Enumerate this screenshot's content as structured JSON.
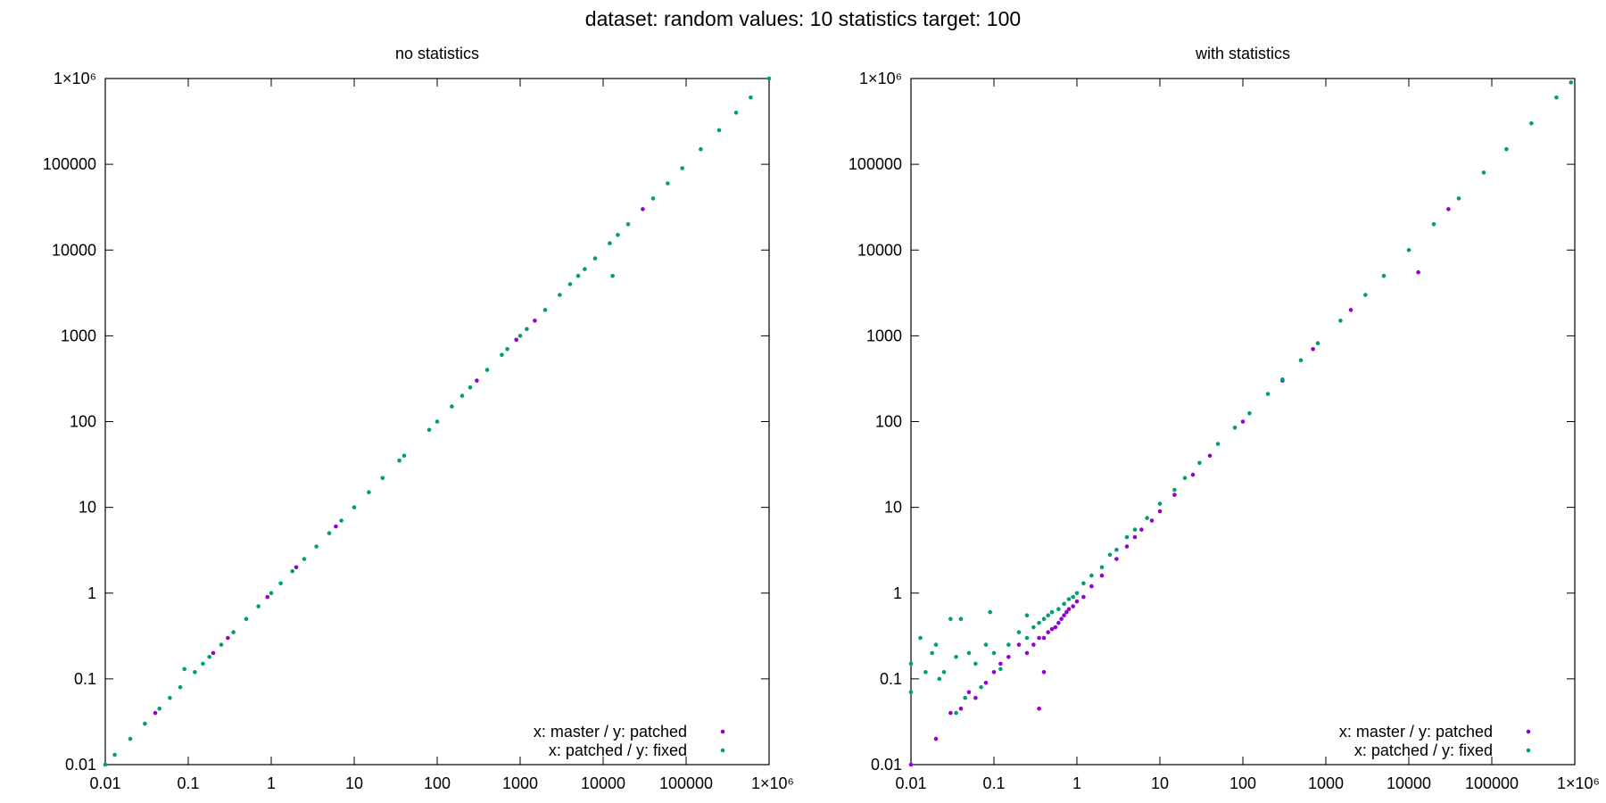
{
  "figure": {
    "title": "dataset: random  values: 10  statistics target: 100"
  },
  "colors": {
    "master_patched": "#9400d3",
    "patched_fixed": "#009e73",
    "axis": "#000000"
  },
  "chart_data": [
    {
      "type": "scatter",
      "title": "no statistics",
      "xlabel": "",
      "ylabel": "",
      "x_scale": "log",
      "y_scale": "log",
      "xlim": [
        0.01,
        1000000
      ],
      "ylim": [
        0.01,
        1000000
      ],
      "x_ticks": [
        0.01,
        0.1,
        1,
        10,
        100,
        1000,
        10000,
        100000,
        1000000
      ],
      "y_ticks": [
        0.01,
        0.1,
        1,
        10,
        100,
        1000,
        10000,
        100000,
        1000000
      ],
      "tick_labels": [
        "0.01",
        "0.1",
        "1",
        "10",
        "100",
        "1000",
        "10000",
        "100000",
        "1×10⁶"
      ],
      "grid": false,
      "legend_position": "bottom-right",
      "series": [
        {
          "name": "x: master / y: patched",
          "color": "#9400d3",
          "points": [
            [
              0.04,
              0.04
            ],
            [
              0.2,
              0.2
            ],
            [
              0.9,
              0.9
            ],
            [
              6,
              6
            ],
            [
              300,
              300
            ],
            [
              900,
              900
            ],
            [
              30000,
              30000
            ],
            [
              0.3,
              0.3
            ],
            [
              2,
              2
            ],
            [
              1500,
              1500
            ]
          ]
        },
        {
          "name": "x: patched / y: fixed",
          "color": "#009e73",
          "points": [
            [
              0.01,
              0.01
            ],
            [
              0.013,
              0.013
            ],
            [
              0.02,
              0.02
            ],
            [
              0.03,
              0.03
            ],
            [
              0.045,
              0.045
            ],
            [
              0.06,
              0.06
            ],
            [
              0.08,
              0.08
            ],
            [
              0.09,
              0.13
            ],
            [
              0.12,
              0.12
            ],
            [
              0.15,
              0.15
            ],
            [
              0.18,
              0.18
            ],
            [
              0.25,
              0.25
            ],
            [
              0.35,
              0.35
            ],
            [
              0.5,
              0.5
            ],
            [
              0.7,
              0.7
            ],
            [
              1,
              1
            ],
            [
              1.3,
              1.3
            ],
            [
              1.8,
              1.8
            ],
            [
              2.5,
              2.5
            ],
            [
              3.5,
              3.5
            ],
            [
              5,
              5
            ],
            [
              7,
              7
            ],
            [
              10,
              10
            ],
            [
              15,
              15
            ],
            [
              22,
              22
            ],
            [
              35,
              35
            ],
            [
              40,
              40
            ],
            [
              80,
              80
            ],
            [
              100,
              100
            ],
            [
              150,
              150
            ],
            [
              200,
              200
            ],
            [
              250,
              250
            ],
            [
              400,
              400
            ],
            [
              600,
              600
            ],
            [
              700,
              700
            ],
            [
              1000,
              1000
            ],
            [
              1200,
              1200
            ],
            [
              2000,
              2000
            ],
            [
              3000,
              3000
            ],
            [
              4000,
              4000
            ],
            [
              5000,
              5000
            ],
            [
              6000,
              6000
            ],
            [
              8000,
              8000
            ],
            [
              12000,
              12000
            ],
            [
              13000,
              5000
            ],
            [
              15000,
              15000
            ],
            [
              20000,
              20000
            ],
            [
              40000,
              40000
            ],
            [
              60000,
              60000
            ],
            [
              90000,
              90000
            ],
            [
              150000,
              150000
            ],
            [
              250000,
              250000
            ],
            [
              400000,
              400000
            ],
            [
              600000,
              600000
            ],
            [
              1000000,
              1000000
            ]
          ]
        }
      ]
    },
    {
      "type": "scatter",
      "title": "with statistics",
      "xlabel": "",
      "ylabel": "",
      "x_scale": "log",
      "y_scale": "log",
      "xlim": [
        0.01,
        1000000
      ],
      "ylim": [
        0.01,
        1000000
      ],
      "x_ticks": [
        0.01,
        0.1,
        1,
        10,
        100,
        1000,
        10000,
        100000,
        1000000
      ],
      "y_ticks": [
        0.01,
        0.1,
        1,
        10,
        100,
        1000,
        10000,
        100000,
        1000000
      ],
      "tick_labels": [
        "0.01",
        "0.1",
        "1",
        "10",
        "100",
        "1000",
        "10000",
        "100000",
        "1×10⁶"
      ],
      "grid": false,
      "legend_position": "bottom-right",
      "series": [
        {
          "name": "x: master / y: patched",
          "color": "#9400d3",
          "points": [
            [
              0.01,
              0.01
            ],
            [
              0.02,
              0.02
            ],
            [
              0.03,
              0.04
            ],
            [
              0.04,
              0.045
            ],
            [
              0.05,
              0.07
            ],
            [
              0.06,
              0.06
            ],
            [
              0.08,
              0.09
            ],
            [
              0.1,
              0.12
            ],
            [
              0.12,
              0.15
            ],
            [
              0.15,
              0.18
            ],
            [
              0.2,
              0.25
            ],
            [
              0.25,
              0.2
            ],
            [
              0.3,
              0.25
            ],
            [
              0.35,
              0.3
            ],
            [
              0.35,
              0.045
            ],
            [
              0.4,
              0.12
            ],
            [
              0.4,
              0.3
            ],
            [
              0.45,
              0.35
            ],
            [
              0.5,
              0.38
            ],
            [
              0.55,
              0.4
            ],
            [
              0.6,
              0.45
            ],
            [
              0.65,
              0.5
            ],
            [
              0.7,
              0.55
            ],
            [
              0.75,
              0.6
            ],
            [
              0.8,
              0.65
            ],
            [
              0.9,
              0.7
            ],
            [
              1,
              0.8
            ],
            [
              1.2,
              0.9
            ],
            [
              1.5,
              1.2
            ],
            [
              2,
              1.6
            ],
            [
              3,
              2.5
            ],
            [
              4,
              3.5
            ],
            [
              5,
              4.5
            ],
            [
              6,
              5.5
            ],
            [
              8,
              7
            ],
            [
              10,
              9
            ],
            [
              15,
              14
            ],
            [
              25,
              24
            ],
            [
              40,
              40
            ],
            [
              100,
              100
            ],
            [
              300,
              300
            ],
            [
              700,
              700
            ],
            [
              2000,
              2000
            ],
            [
              13000,
              5500
            ],
            [
              30000,
              30000
            ]
          ]
        },
        {
          "name": "x: patched / y: fixed",
          "color": "#009e73",
          "points": [
            [
              0.01,
              0.15
            ],
            [
              0.01,
              0.07
            ],
            [
              0.013,
              0.3
            ],
            [
              0.015,
              0.12
            ],
            [
              0.018,
              0.2
            ],
            [
              0.02,
              0.25
            ],
            [
              0.022,
              0.1
            ],
            [
              0.025,
              0.12
            ],
            [
              0.03,
              0.5
            ],
            [
              0.035,
              0.04
            ],
            [
              0.035,
              0.18
            ],
            [
              0.04,
              0.5
            ],
            [
              0.045,
              0.06
            ],
            [
              0.05,
              0.2
            ],
            [
              0.06,
              0.15
            ],
            [
              0.07,
              0.08
            ],
            [
              0.08,
              0.25
            ],
            [
              0.09,
              0.6
            ],
            [
              0.1,
              0.2
            ],
            [
              0.12,
              0.13
            ],
            [
              0.15,
              0.25
            ],
            [
              0.2,
              0.35
            ],
            [
              0.25,
              0.3
            ],
            [
              0.25,
              0.55
            ],
            [
              0.3,
              0.4
            ],
            [
              0.35,
              0.45
            ],
            [
              0.4,
              0.5
            ],
            [
              0.45,
              0.55
            ],
            [
              0.5,
              0.6
            ],
            [
              0.6,
              0.65
            ],
            [
              0.7,
              0.75
            ],
            [
              0.8,
              0.85
            ],
            [
              0.9,
              0.9
            ],
            [
              1,
              1
            ],
            [
              1.2,
              1.3
            ],
            [
              1.5,
              1.6
            ],
            [
              2,
              2
            ],
            [
              2.5,
              2.8
            ],
            [
              3,
              3.2
            ],
            [
              4,
              4.5
            ],
            [
              5,
              5.5
            ],
            [
              7,
              7.5
            ],
            [
              10,
              11
            ],
            [
              15,
              16
            ],
            [
              20,
              22
            ],
            [
              30,
              33
            ],
            [
              50,
              55
            ],
            [
              80,
              85
            ],
            [
              120,
              125
            ],
            [
              200,
              210
            ],
            [
              300,
              310
            ],
            [
              500,
              520
            ],
            [
              800,
              820
            ],
            [
              1500,
              1500
            ],
            [
              3000,
              3000
            ],
            [
              5000,
              5000
            ],
            [
              10000,
              10000
            ],
            [
              20000,
              20000
            ],
            [
              40000,
              40000
            ],
            [
              80000,
              80000
            ],
            [
              150000,
              150000
            ],
            [
              300000,
              300000
            ],
            [
              600000,
              600000
            ],
            [
              900000,
              900000
            ]
          ]
        }
      ]
    }
  ]
}
